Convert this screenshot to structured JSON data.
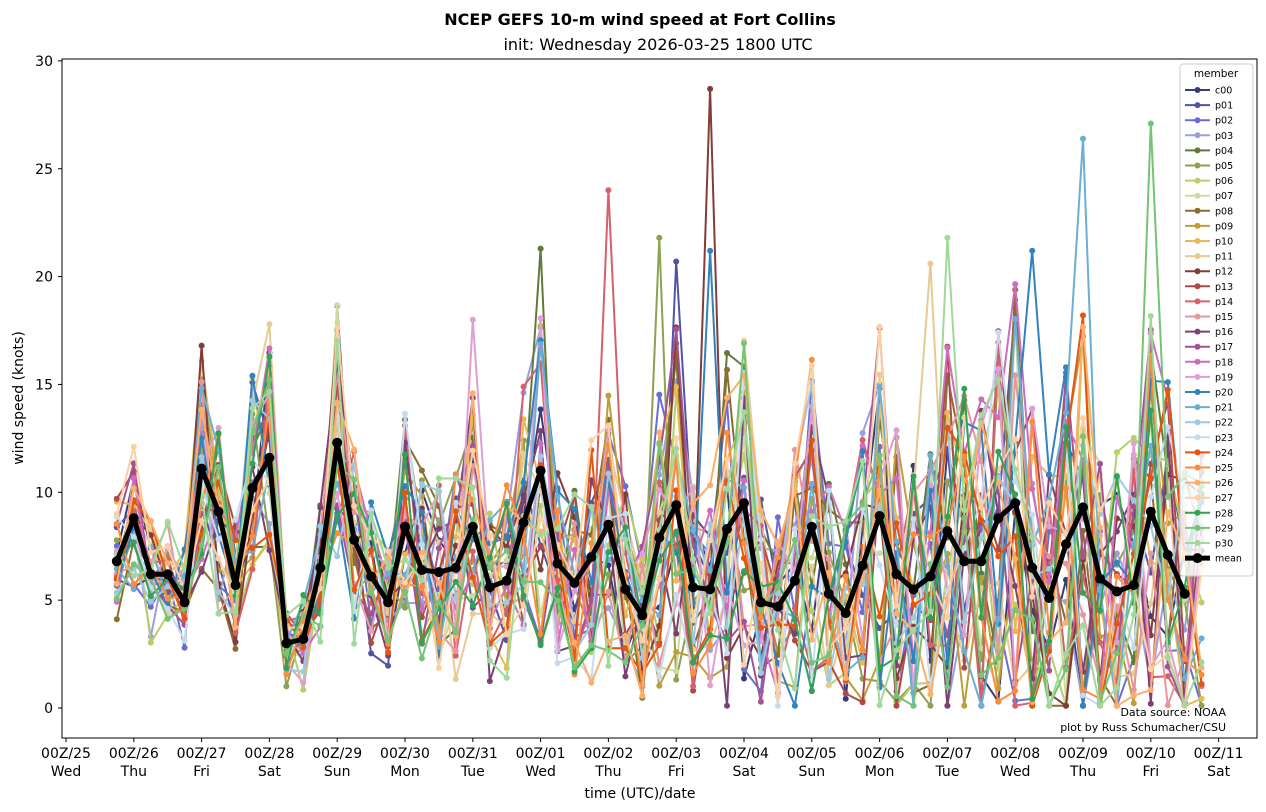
{
  "chart_data": {
    "type": "line",
    "title": "NCEP GEFS 10-m wind speed at Fort Collins",
    "subtitle": "init: Wednesday 2026-03-25 1800 UTC",
    "xlabel": "time (UTC)/date",
    "ylabel": "wind speed (knots)",
    "ylim": [
      -1.3,
      30.2
    ],
    "yticks": [
      0,
      5,
      10,
      15,
      20,
      25,
      30
    ],
    "xlim_days_from_00Z25": [
      -0.3,
      17.55
    ],
    "xticks": [
      {
        "day": 0,
        "line1": "00Z/25",
        "line2": "Wed"
      },
      {
        "day": 1,
        "line1": "00Z/26",
        "line2": "Thu"
      },
      {
        "day": 2,
        "line1": "00Z/27",
        "line2": "Fri"
      },
      {
        "day": 3,
        "line1": "00Z/28",
        "line2": "Sat"
      },
      {
        "day": 4,
        "line1": "00Z/29",
        "line2": "Sun"
      },
      {
        "day": 5,
        "line1": "00Z/30",
        "line2": "Mon"
      },
      {
        "day": 6,
        "line1": "00Z/31",
        "line2": "Tue"
      },
      {
        "day": 7,
        "line1": "00Z/01",
        "line2": "Wed"
      },
      {
        "day": 8,
        "line1": "00Z/02",
        "line2": "Thu"
      },
      {
        "day": 9,
        "line1": "00Z/03",
        "line2": "Fri"
      },
      {
        "day": 10,
        "line1": "00Z/04",
        "line2": "Sat"
      },
      {
        "day": 11,
        "line1": "00Z/05",
        "line2": "Sun"
      },
      {
        "day": 12,
        "line1": "00Z/06",
        "line2": "Mon"
      },
      {
        "day": 13,
        "line1": "00Z/07",
        "line2": "Tue"
      },
      {
        "day": 14,
        "line1": "00Z/08",
        "line2": "Wed"
      },
      {
        "day": 15,
        "line1": "00Z/09",
        "line2": "Thu"
      },
      {
        "day": 16,
        "line1": "00Z/10",
        "line2": "Fri"
      },
      {
        "day": 17,
        "line1": "00Z/11",
        "line2": "Sat"
      }
    ],
    "time_start_day": 0.75,
    "time_step_hours": 6,
    "grid": false,
    "legend": {
      "title": "member",
      "placement": "top-right"
    },
    "annotation": [
      "Data source: NOAA",
      "plot by Russ Schumacher/CSU"
    ],
    "mean": {
      "name": "mean",
      "color": "#000000",
      "values": [
        6.8,
        8.8,
        6.2,
        6.2,
        4.9,
        11.1,
        9.1,
        5.7,
        10.2,
        11.6,
        3.0,
        3.2,
        6.5,
        12.3,
        7.8,
        6.1,
        4.9,
        8.4,
        6.4,
        6.3,
        6.5,
        8.4,
        5.6,
        5.9,
        8.6,
        11.0,
        6.7,
        5.8,
        7.0,
        8.5,
        5.5,
        4.3,
        7.9,
        9.4,
        5.6,
        5.5,
        8.3,
        9.5,
        4.9,
        4.7,
        5.9,
        8.4,
        5.3,
        4.4,
        6.6,
        8.9,
        6.2,
        5.5,
        6.1,
        8.2,
        6.8,
        6.8,
        8.8,
        9.5,
        6.5,
        5.1,
        7.6,
        9.3,
        6.0,
        5.4,
        5.7,
        9.1,
        7.1,
        5.3
      ]
    },
    "members": [
      {
        "name": "c00",
        "color": "#393b79"
      },
      {
        "name": "p01",
        "color": "#5254a3"
      },
      {
        "name": "p02",
        "color": "#6b6ecf"
      },
      {
        "name": "p03",
        "color": "#9c9ede"
      },
      {
        "name": "p04",
        "color": "#637939"
      },
      {
        "name": "p05",
        "color": "#8ca252"
      },
      {
        "name": "p06",
        "color": "#b5cf6b"
      },
      {
        "name": "p07",
        "color": "#cedb9c"
      },
      {
        "name": "p08",
        "color": "#8c6d31"
      },
      {
        "name": "p09",
        "color": "#bd9e39"
      },
      {
        "name": "p10",
        "color": "#e7ba52"
      },
      {
        "name": "p11",
        "color": "#e7cb94"
      },
      {
        "name": "p12",
        "color": "#843c39"
      },
      {
        "name": "p13",
        "color": "#ad494a"
      },
      {
        "name": "p14",
        "color": "#d6616b"
      },
      {
        "name": "p15",
        "color": "#e7969c"
      },
      {
        "name": "p16",
        "color": "#7b4173"
      },
      {
        "name": "p17",
        "color": "#a55194"
      },
      {
        "name": "p18",
        "color": "#ce6dbd"
      },
      {
        "name": "p19",
        "color": "#de9ed6"
      },
      {
        "name": "p20",
        "color": "#3182bd"
      },
      {
        "name": "p21",
        "color": "#6baed6"
      },
      {
        "name": "p22",
        "color": "#9ecae1"
      },
      {
        "name": "p23",
        "color": "#c6dbef"
      },
      {
        "name": "p24",
        "color": "#e6550d"
      },
      {
        "name": "p25",
        "color": "#fd8d3c"
      },
      {
        "name": "p26",
        "color": "#fdae6b"
      },
      {
        "name": "p27",
        "color": "#fdd0a2"
      },
      {
        "name": "p28",
        "color": "#31a354"
      },
      {
        "name": "p29",
        "color": "#74c476"
      },
      {
        "name": "p30",
        "color": "#a1d99b"
      }
    ],
    "member_peaks": [
      {
        "name": "p12",
        "time_index": 35,
        "value": 28.7
      },
      {
        "name": "p29",
        "time_index": 61,
        "value": 27.1
      },
      {
        "name": "p21",
        "time_index": 57,
        "value": 26.4
      },
      {
        "name": "p14",
        "time_index": 29,
        "value": 24.0
      },
      {
        "name": "p30",
        "time_index": 49,
        "value": 21.8
      },
      {
        "name": "p05",
        "time_index": 32,
        "value": 21.8
      },
      {
        "name": "p04",
        "time_index": 25,
        "value": 21.3
      },
      {
        "name": "p20",
        "time_index": 54,
        "value": 21.2
      },
      {
        "name": "p20",
        "time_index": 35,
        "value": 21.2
      },
      {
        "name": "p01",
        "time_index": 33,
        "value": 20.7
      },
      {
        "name": "p11",
        "time_index": 48,
        "value": 20.6
      },
      {
        "name": "p19",
        "time_index": 21,
        "value": 18.0
      },
      {
        "name": "p12",
        "time_index": 5,
        "value": 16.8
      },
      {
        "name": "p08",
        "time_index": 13,
        "value": 16.5
      }
    ]
  }
}
